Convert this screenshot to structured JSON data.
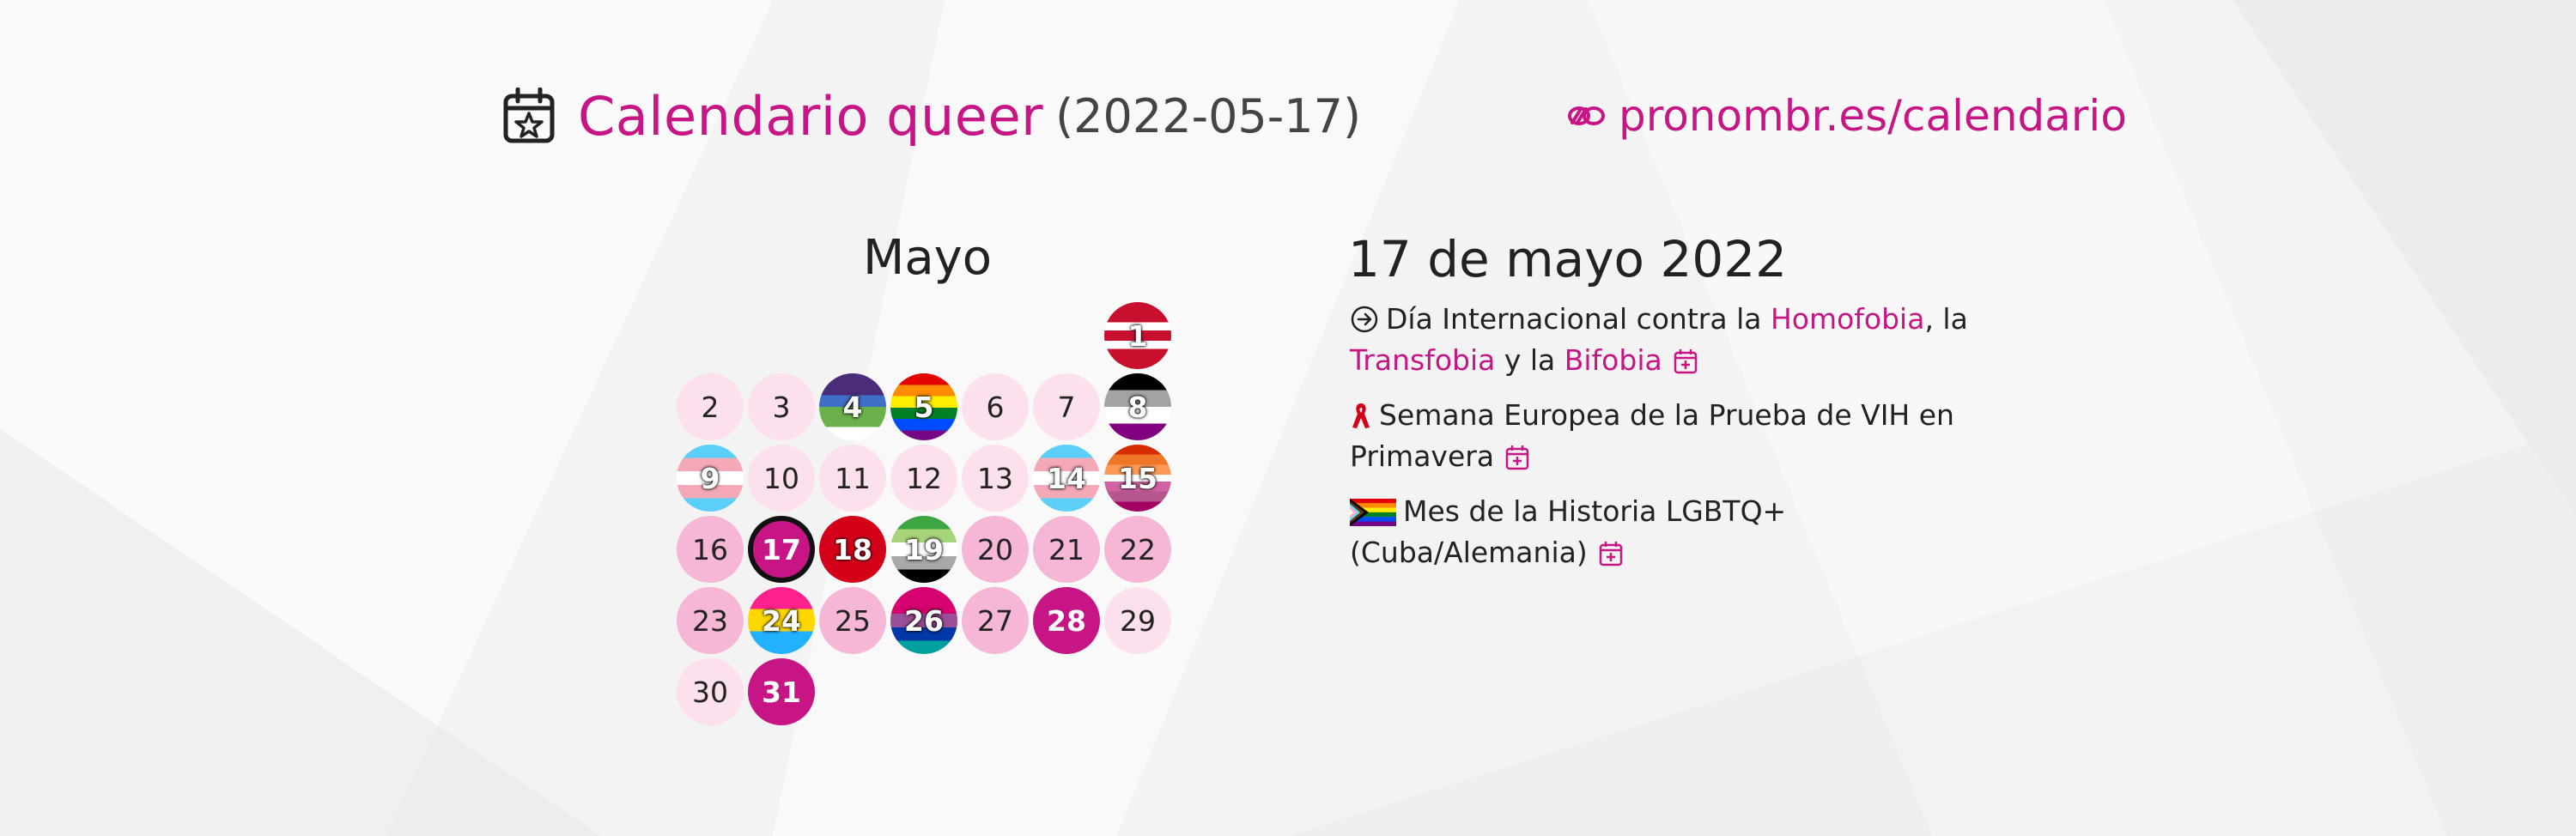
{
  "header": {
    "title": "Calendario queer",
    "date": "(2022-05-17)",
    "site": "pronombr.es/calendario"
  },
  "month": {
    "name": "Mayo"
  },
  "days": [
    {
      "n": "1",
      "style": "flag",
      "flag": "red-white"
    },
    {
      "n": "2",
      "style": "light"
    },
    {
      "n": "3",
      "style": "light"
    },
    {
      "n": "4",
      "style": "flag",
      "flag": "purple-blue-green"
    },
    {
      "n": "5",
      "style": "flag",
      "flag": "rainbow"
    },
    {
      "n": "6",
      "style": "light"
    },
    {
      "n": "7",
      "style": "light"
    },
    {
      "n": "8",
      "style": "flag",
      "flag": "asexual"
    },
    {
      "n": "9",
      "style": "flag",
      "flag": "trans"
    },
    {
      "n": "10",
      "style": "light"
    },
    {
      "n": "11",
      "style": "light"
    },
    {
      "n": "12",
      "style": "light"
    },
    {
      "n": "13",
      "style": "light"
    },
    {
      "n": "14",
      "style": "flag",
      "flag": "trans"
    },
    {
      "n": "15",
      "style": "flag",
      "flag": "lesbian"
    },
    {
      "n": "16",
      "style": "mid"
    },
    {
      "n": "17",
      "style": "today"
    },
    {
      "n": "18",
      "style": "flag",
      "flag": "aids"
    },
    {
      "n": "19",
      "style": "flag",
      "flag": "aromantic"
    },
    {
      "n": "20",
      "style": "mid"
    },
    {
      "n": "21",
      "style": "mid"
    },
    {
      "n": "22",
      "style": "mid"
    },
    {
      "n": "23",
      "style": "mid"
    },
    {
      "n": "24",
      "style": "flag",
      "flag": "pansexual"
    },
    {
      "n": "25",
      "style": "mid"
    },
    {
      "n": "26",
      "style": "flag",
      "flag": "bisexual"
    },
    {
      "n": "27",
      "style": "mid"
    },
    {
      "n": "28",
      "style": "strong"
    },
    {
      "n": "29",
      "style": "light"
    },
    {
      "n": "30",
      "style": "light"
    },
    {
      "n": "31",
      "style": "strong"
    }
  ],
  "events": {
    "date_title": "17 de mayo 2022",
    "e1": {
      "pre": "Día Internacional contra la ",
      "homofobia": "Homofobia",
      "mid": ", la ",
      "transfobia": "Transfobia",
      "y": " y la ",
      "bifobia": "Bifobia"
    },
    "e2": {
      "text": "Semana Europea de la Prueba de VIH en Primavera"
    },
    "e3": {
      "text": "Mes de la Historia LGBTQ+ (Cuba/Alemania)"
    }
  },
  "colors": {
    "accent": "#c71585",
    "light": "#fde0ee",
    "mid": "#f6b6d6"
  }
}
